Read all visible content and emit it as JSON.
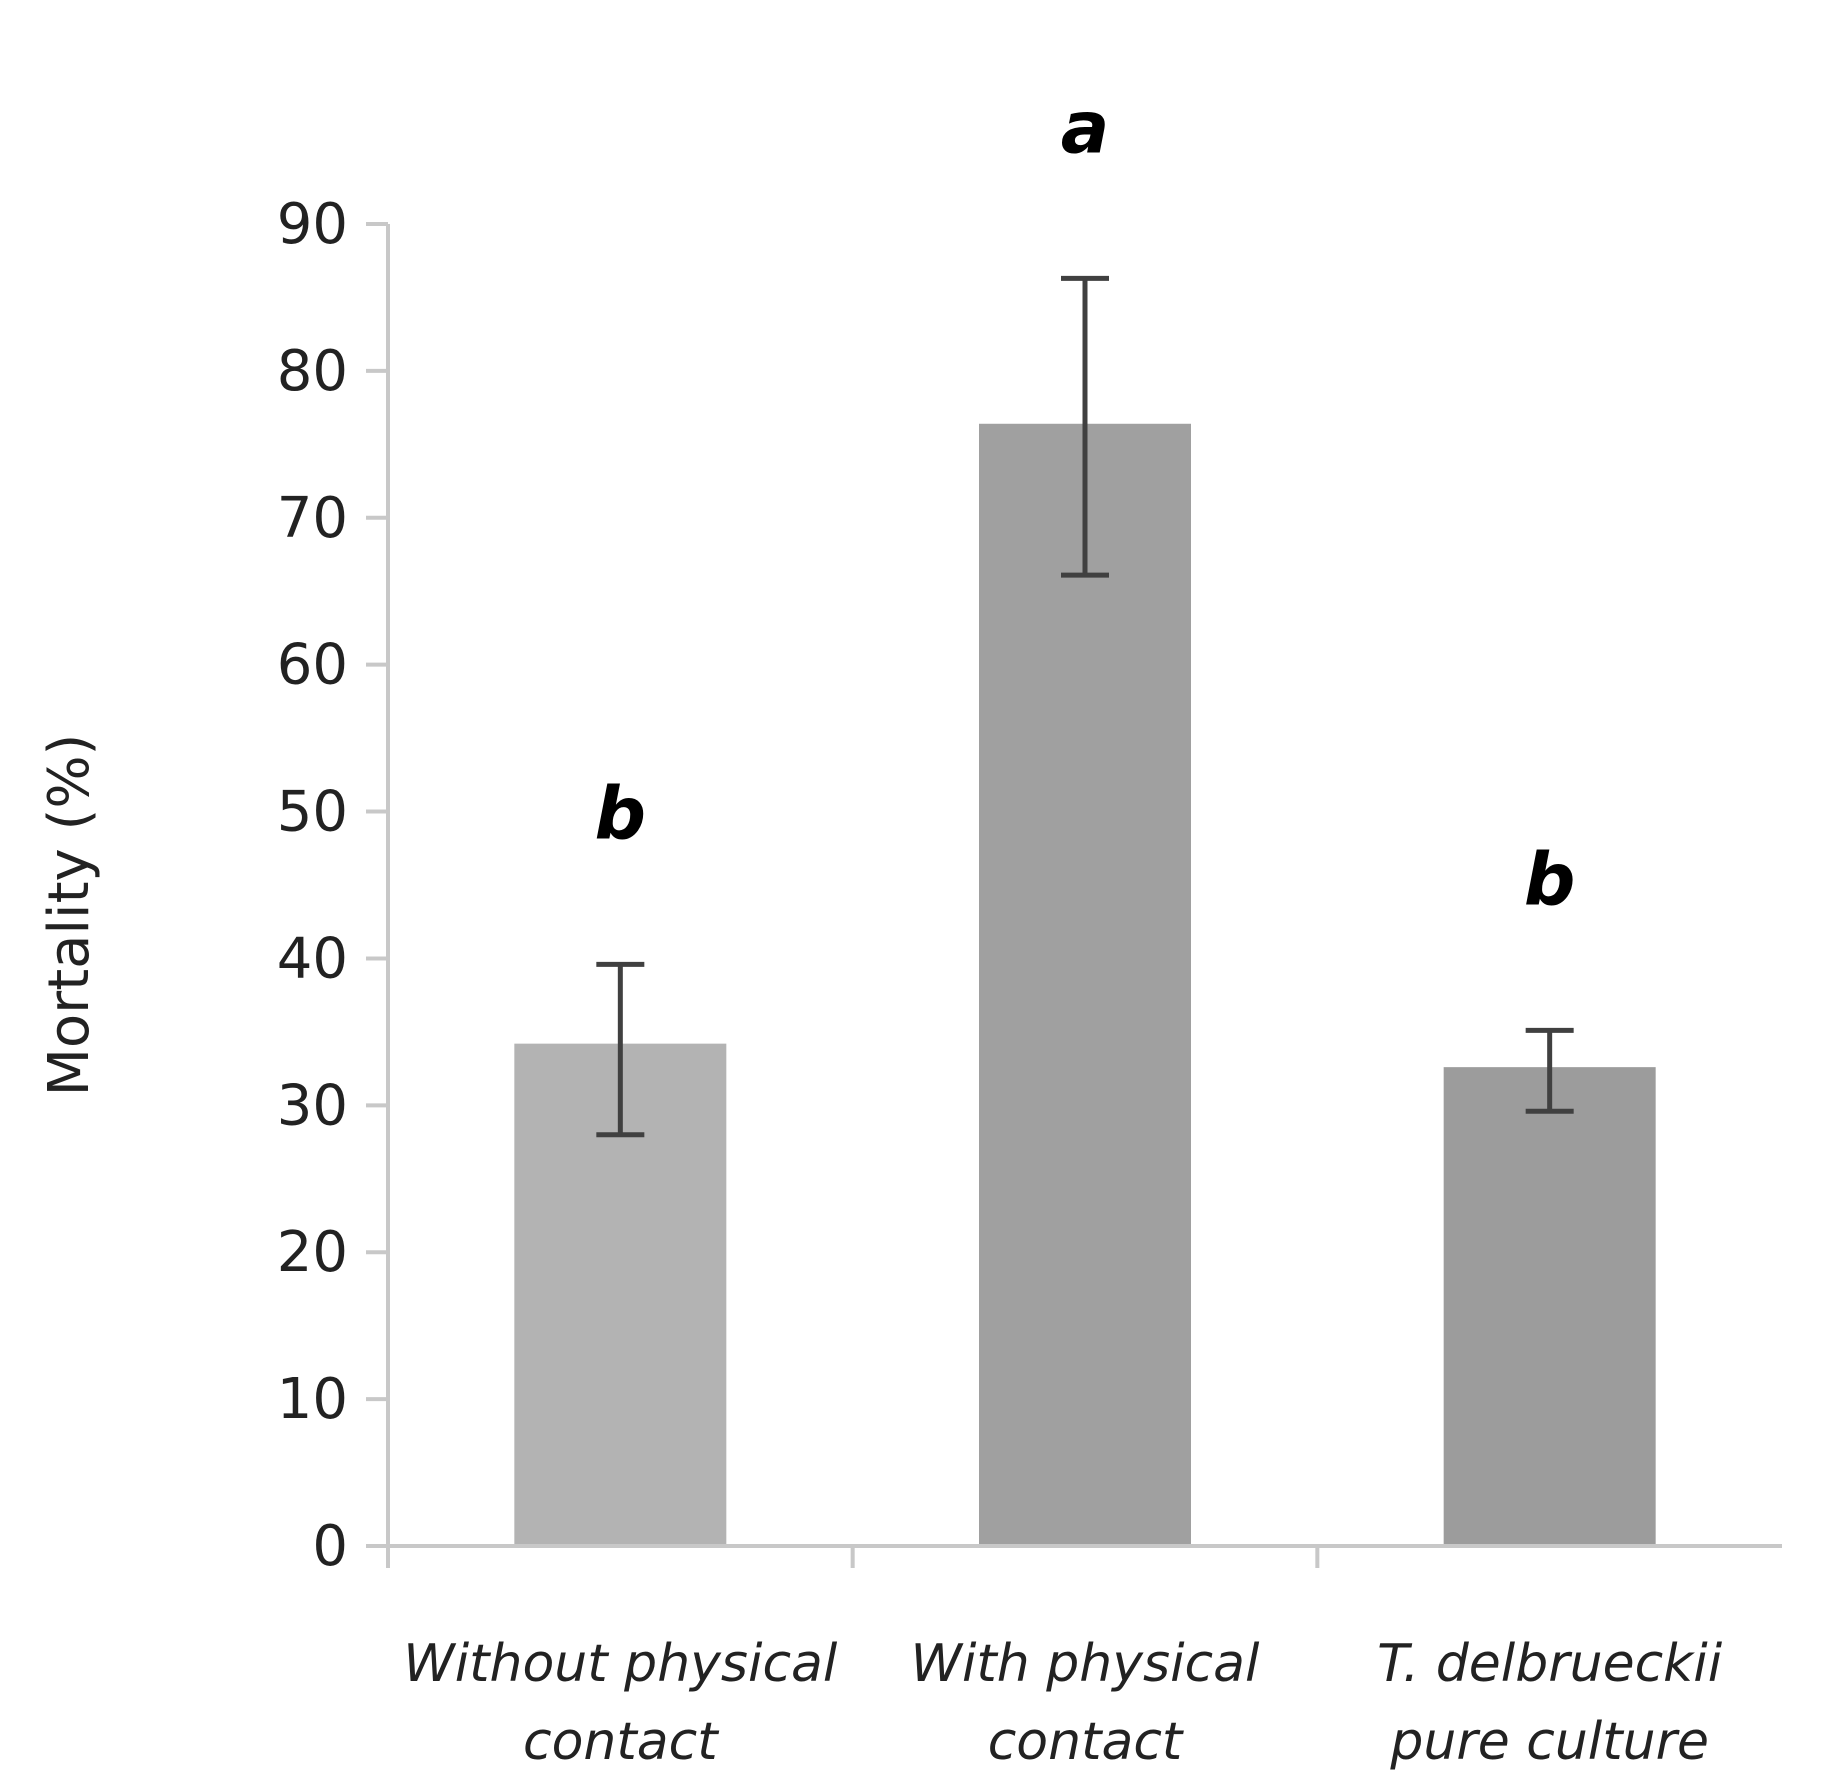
{
  "chart_data": {
    "type": "bar",
    "categories": [
      [
        "Without physical",
        "contact"
      ],
      [
        "With physical",
        "contact"
      ],
      [
        "T. delbrueckii",
        "pure culture"
      ]
    ],
    "values": [
      34.2,
      76.4,
      32.6
    ],
    "error_high": [
      39.6,
      86.3,
      35.1
    ],
    "error_low": [
      28.0,
      66.1,
      29.6
    ],
    "significance": [
      "b",
      "a",
      "b"
    ],
    "bar_colors": [
      "#b3b3b3",
      "#a0a0a0",
      "#9c9c9c"
    ],
    "ylabel": "Mortality (%)",
    "xlabel": "",
    "title": "",
    "ylim": [
      0,
      90
    ],
    "yticks": [
      0,
      10,
      20,
      30,
      40,
      50,
      60,
      70,
      80,
      90
    ],
    "grid": false
  }
}
